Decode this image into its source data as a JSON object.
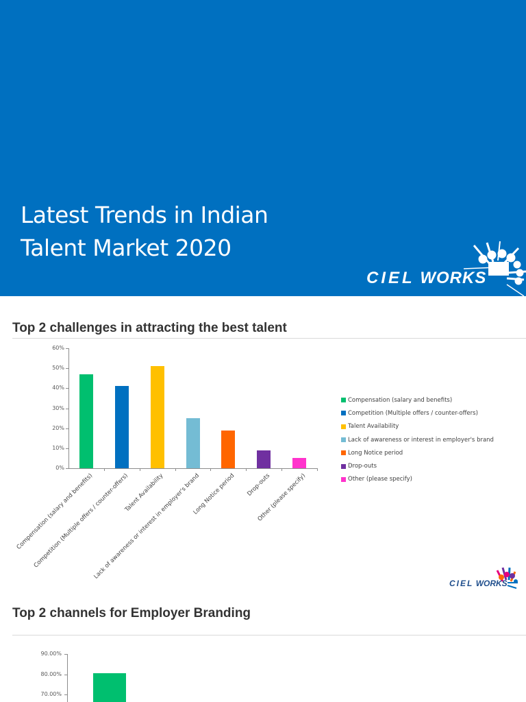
{
  "banner": {
    "title_lines": [
      "Latest Trends in Indian",
      "Talent Market 2020"
    ],
    "background": "#0070C0",
    "logo": {
      "word1": "CIEL",
      "word2": "WORKS"
    }
  },
  "section1": {
    "title": "Top 2 challenges in attracting the best talent"
  },
  "section2": {
    "title": "Top 2 channels for Employer Branding"
  },
  "footer_logo": {
    "word1": "CIEL",
    "word2": "WORKS"
  },
  "chart_data": [
    {
      "type": "bar",
      "title": "Top 2 challenges in attracting the best talent",
      "xlabel": "",
      "ylabel": "",
      "categories": [
        "Compensation (salary and benefits)",
        "Competition (Multiple offers / counter-offers)",
        "Talent Availability",
        "Lack of awareness or interest in employer's brand",
        "Long Notice period",
        "Drop-outs",
        "Other (please specify)"
      ],
      "values": [
        47,
        41,
        51,
        25,
        19,
        9,
        5
      ],
      "colors": [
        "#00BF6F",
        "#0070C0",
        "#FFC000",
        "#74BCD4",
        "#FF6600",
        "#7030A0",
        "#FF33CC"
      ],
      "ylim": [
        0,
        60
      ],
      "yticks": [
        "0%",
        "10%",
        "20%",
        "30%",
        "40%",
        "50%",
        "60%"
      ],
      "grid": false,
      "legend_position": "right",
      "legend": [
        "Compensation (salary and benefits)",
        "Competition (Multiple offers / counter-offers)",
        "Talent Availability",
        "Lack of awareness or interest in employer's brand",
        "Long Notice period",
        "Drop-outs",
        "Other (please specify)"
      ]
    },
    {
      "type": "bar",
      "title": "Top 2 channels for Employer Branding",
      "categories": [
        ""
      ],
      "values": [
        80.5
      ],
      "colors": [
        "#00BF6F"
      ],
      "yticks_visible": [
        "70.00%",
        "80.00%",
        "90.00%"
      ],
      "grid": false,
      "note": "chart truncated at bottom of page"
    }
  ]
}
